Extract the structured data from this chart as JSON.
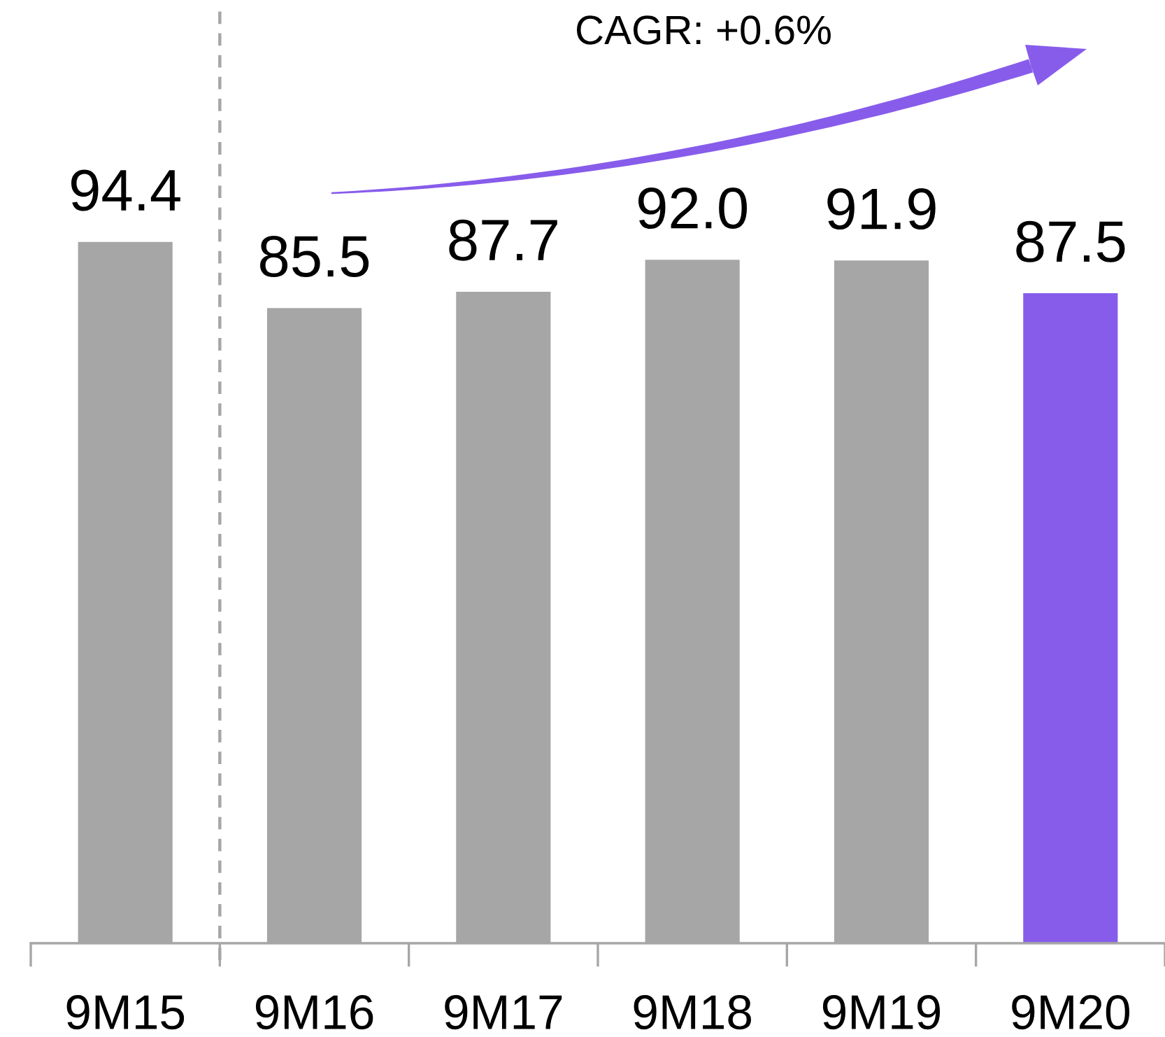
{
  "chart_data": {
    "type": "bar",
    "categories": [
      "9M15",
      "9M16",
      "9M17",
      "9M18",
      "9M19",
      "9M20"
    ],
    "values": [
      94.4,
      85.5,
      87.7,
      92.0,
      91.9,
      87.5
    ],
    "value_labels": [
      "94.4",
      "85.5",
      "87.7",
      "92.0",
      "91.9",
      "87.5"
    ],
    "colors": [
      "#a6a6a6",
      "#a6a6a6",
      "#a6a6a6",
      "#a6a6a6",
      "#a6a6a6",
      "#875ceb"
    ],
    "annotations": [
      "CAGR: +0.6%"
    ]
  }
}
